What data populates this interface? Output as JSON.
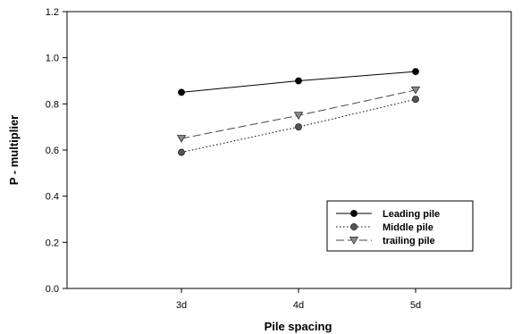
{
  "chart_data": {
    "type": "line",
    "title": "",
    "xlabel": "Pile spacing",
    "ylabel": "P - multiplier",
    "categories": [
      "3d",
      "4d",
      "5d"
    ],
    "ylim": [
      0,
      1.2
    ],
    "yticks": [
      "0.0",
      "0.2",
      "0.4",
      "0.6",
      "0.8",
      "1.0",
      "1.2"
    ],
    "grid": false,
    "legend_position": "bottom-right",
    "series": [
      {
        "name": "Leading pile",
        "values": [
          0.85,
          0.9,
          0.94
        ],
        "line": "solid",
        "marker": "circle",
        "color": "#000000"
      },
      {
        "name": "Middle pile",
        "values": [
          0.59,
          0.7,
          0.82
        ],
        "line": "dotted",
        "marker": "circle",
        "color": "#555555"
      },
      {
        "name": "trailing pile",
        "values": [
          0.65,
          0.75,
          0.86
        ],
        "line": "dashed",
        "marker": "triangle-down",
        "color": "#888888"
      }
    ]
  }
}
